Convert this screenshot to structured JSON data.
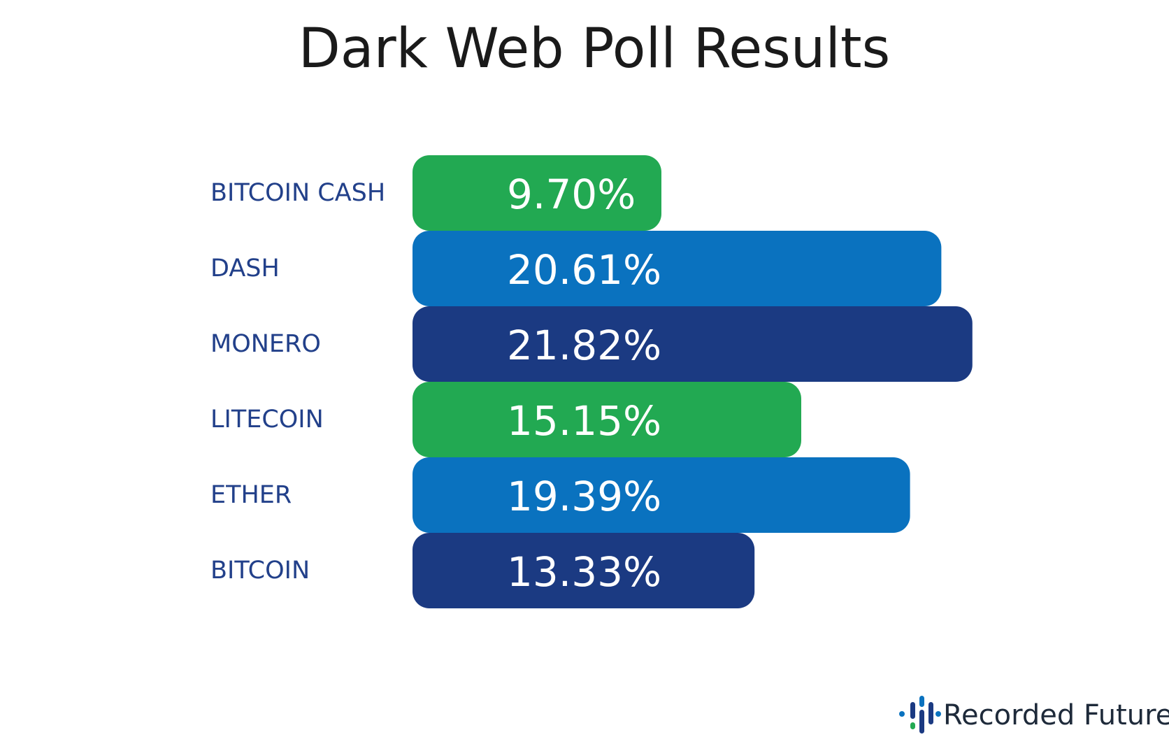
{
  "chart_data": {
    "type": "bar",
    "orientation": "horizontal",
    "title": "Dark Web Poll Results",
    "categories": [
      "BITCOIN CASH",
      "DASH",
      "MONERO",
      "LITECOIN",
      "ETHER",
      "BITCOIN"
    ],
    "values": [
      9.7,
      20.61,
      21.82,
      15.15,
      19.39,
      13.33
    ],
    "value_labels": [
      "9.70%",
      "20.61%",
      "21.82%",
      "15.15%",
      "19.39%",
      "13.33%"
    ],
    "bar_colors": [
      "#22a952",
      "#0a72bf",
      "#1b3a82",
      "#22a952",
      "#0a72bf",
      "#1b3a82"
    ],
    "grid": false,
    "legend": "none"
  },
  "brand": {
    "name": "Recorded Future",
    "icon": "recorded-future-logo-icon",
    "colors": [
      "#1b3a82",
      "#0a72bf",
      "#22a952"
    ]
  },
  "colors": {
    "title": "#1a1a1a",
    "category_label": "#22408a",
    "value_label": "#ffffff",
    "brand_text": "#1e2a3a"
  }
}
